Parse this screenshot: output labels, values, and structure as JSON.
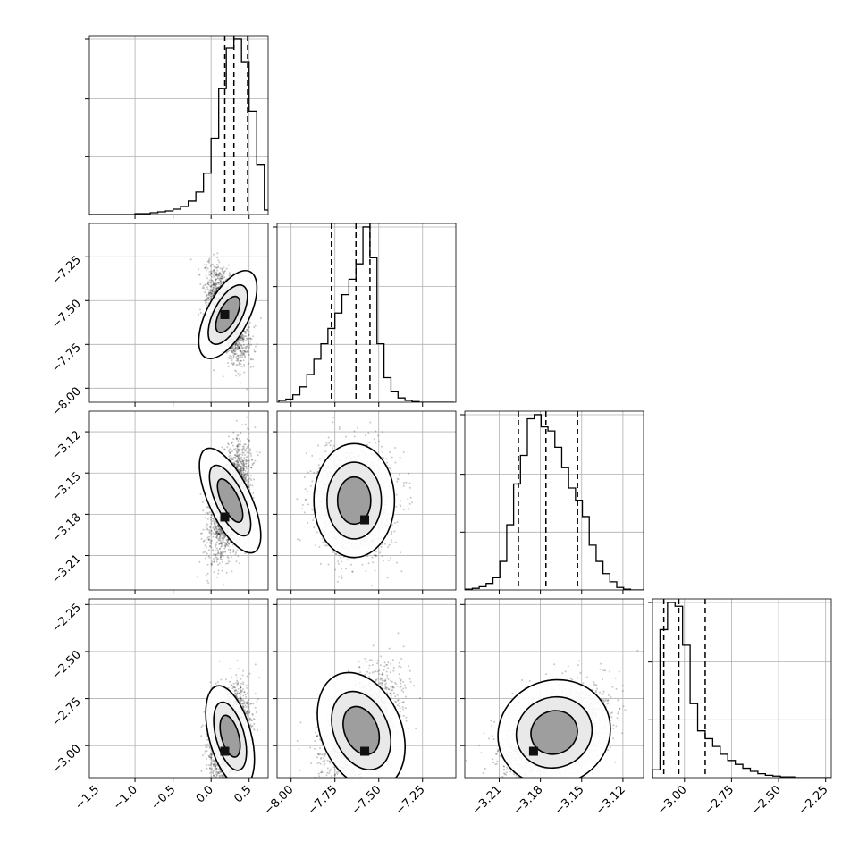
{
  "chart_data": {
    "type": "corner",
    "grid": true,
    "legend": "none",
    "variables": [
      {
        "range": [
          -1.6,
          0.75
        ],
        "ticks": [
          -1.5,
          -1.0,
          -0.5,
          0.0,
          0.5
        ],
        "tick_labels": [
          "−1.5",
          "−1.0",
          "−0.5",
          "0.0",
          "0.5"
        ],
        "quantiles": [
          0.18,
          0.3,
          0.48
        ]
      },
      {
        "range": [
          -8.08,
          -7.06
        ],
        "ticks": [
          -8.0,
          -7.75,
          -7.5,
          -7.25
        ],
        "tick_labels": [
          "−8.00",
          "−7.75",
          "−7.50",
          "−7.25"
        ],
        "quantiles": [
          -7.77,
          -7.63,
          -7.55
        ]
      },
      {
        "range": [
          -3.235,
          -3.105
        ],
        "ticks": [
          -3.21,
          -3.18,
          -3.15,
          -3.12
        ],
        "tick_labels": [
          "−3.21",
          "−3.18",
          "−3.15",
          "−3.12"
        ],
        "quantiles": [
          -3.196,
          -3.176,
          -3.153
        ]
      },
      {
        "range": [
          -3.17,
          -2.22
        ],
        "ticks": [
          -3.0,
          -2.75,
          -2.5,
          -2.25
        ],
        "tick_labels": [
          "−3.00",
          "−2.75",
          "−2.50",
          "−2.25"
        ],
        "quantiles": [
          -3.11,
          -3.03,
          -2.89
        ]
      }
    ],
    "histograms": [
      {
        "bin_centers": [
          -1.55,
          -1.45,
          -1.35,
          -1.25,
          -1.15,
          -1.05,
          -0.95,
          -0.85,
          -0.75,
          -0.65,
          -0.55,
          -0.45,
          -0.35,
          -0.25,
          -0.15,
          -0.05,
          0.05,
          0.15,
          0.25,
          0.35,
          0.45,
          0.55,
          0.65,
          0.75
        ],
        "counts": [
          0,
          0,
          0,
          0,
          0,
          0,
          1,
          1,
          2,
          3,
          4,
          6,
          9,
          15,
          25,
          46,
          85,
          140,
          185,
          195,
          170,
          115,
          55,
          5
        ]
      },
      {
        "bin_centers": [
          -8.05,
          -8.01,
          -7.97,
          -7.93,
          -7.89,
          -7.85,
          -7.81,
          -7.77,
          -7.73,
          -7.69,
          -7.65,
          -7.61,
          -7.57,
          -7.53,
          -7.49,
          -7.45,
          -7.41,
          -7.37,
          -7.33,
          -7.29,
          -7.25,
          -7.21,
          -7.17,
          -7.13,
          -7.09
        ],
        "counts": [
          3,
          5,
          12,
          25,
          45,
          70,
          95,
          120,
          145,
          175,
          200,
          225,
          285,
          235,
          95,
          40,
          17,
          7,
          3,
          1,
          0,
          0,
          0,
          0,
          0
        ]
      },
      {
        "bin_centers": [
          -3.232,
          -3.227,
          -3.222,
          -3.217,
          -3.212,
          -3.207,
          -3.202,
          -3.197,
          -3.192,
          -3.187,
          -3.182,
          -3.177,
          -3.172,
          -3.167,
          -3.162,
          -3.157,
          -3.152,
          -3.147,
          -3.142,
          -3.137,
          -3.132,
          -3.127,
          -3.122,
          -3.117,
          -3.112,
          -3.107
        ],
        "counts": [
          1,
          2,
          4,
          8,
          15,
          35,
          80,
          130,
          165,
          210,
          215,
          200,
          195,
          175,
          150,
          125,
          110,
          90,
          55,
          35,
          20,
          10,
          3,
          1,
          0,
          0
        ]
      },
      {
        "bin_centers": [
          -3.15,
          -3.11,
          -3.07,
          -3.03,
          -2.99,
          -2.95,
          -2.91,
          -2.87,
          -2.83,
          -2.79,
          -2.75,
          -2.71,
          -2.67,
          -2.63,
          -2.59,
          -2.55,
          -2.51,
          -2.47,
          -2.43,
          -2.39,
          -2.35,
          -2.31,
          -2.27,
          -2.23
        ],
        "counts": [
          10,
          190,
          225,
          220,
          170,
          95,
          60,
          50,
          40,
          30,
          22,
          17,
          12,
          8,
          5,
          3,
          2,
          1,
          1,
          0,
          0,
          0,
          0,
          0
        ]
      }
    ],
    "pairs": [
      {
        "x_var": 0,
        "y_var": 1,
        "center": [
          0.22,
          -7.58
        ],
        "spread": [
          0.12,
          0.12
        ],
        "correlation": -0.55,
        "density_peak": [
          0.18,
          -7.58
        ]
      },
      {
        "x_var": 0,
        "y_var": 2,
        "center": [
          0.25,
          -3.17
        ],
        "spread": [
          0.12,
          0.018
        ],
        "correlation": 0.5,
        "density_peak": [
          0.18,
          -3.182
        ]
      },
      {
        "x_var": 1,
        "y_var": 2,
        "center": [
          -7.64,
          -3.17
        ],
        "spread": [
          0.1,
          0.018
        ],
        "correlation": 0.0,
        "density_peak": [
          -7.58,
          -3.184
        ]
      },
      {
        "x_var": 0,
        "y_var": 3,
        "center": [
          0.25,
          -2.95
        ],
        "spread": [
          0.12,
          0.12
        ],
        "correlation": 0.3,
        "density_peak": [
          0.18,
          -3.03
        ]
      },
      {
        "x_var": 1,
        "y_var": 3,
        "center": [
          -7.6,
          -2.92
        ],
        "spread": [
          0.1,
          0.14
        ],
        "correlation": 0.45,
        "density_peak": [
          -7.58,
          -3.03
        ]
      },
      {
        "x_var": 2,
        "y_var": 3,
        "center": [
          -3.17,
          -2.93
        ],
        "spread": [
          0.018,
          0.12
        ],
        "correlation": 0.45,
        "density_peak": [
          -3.185,
          -3.03
        ]
      }
    ]
  }
}
